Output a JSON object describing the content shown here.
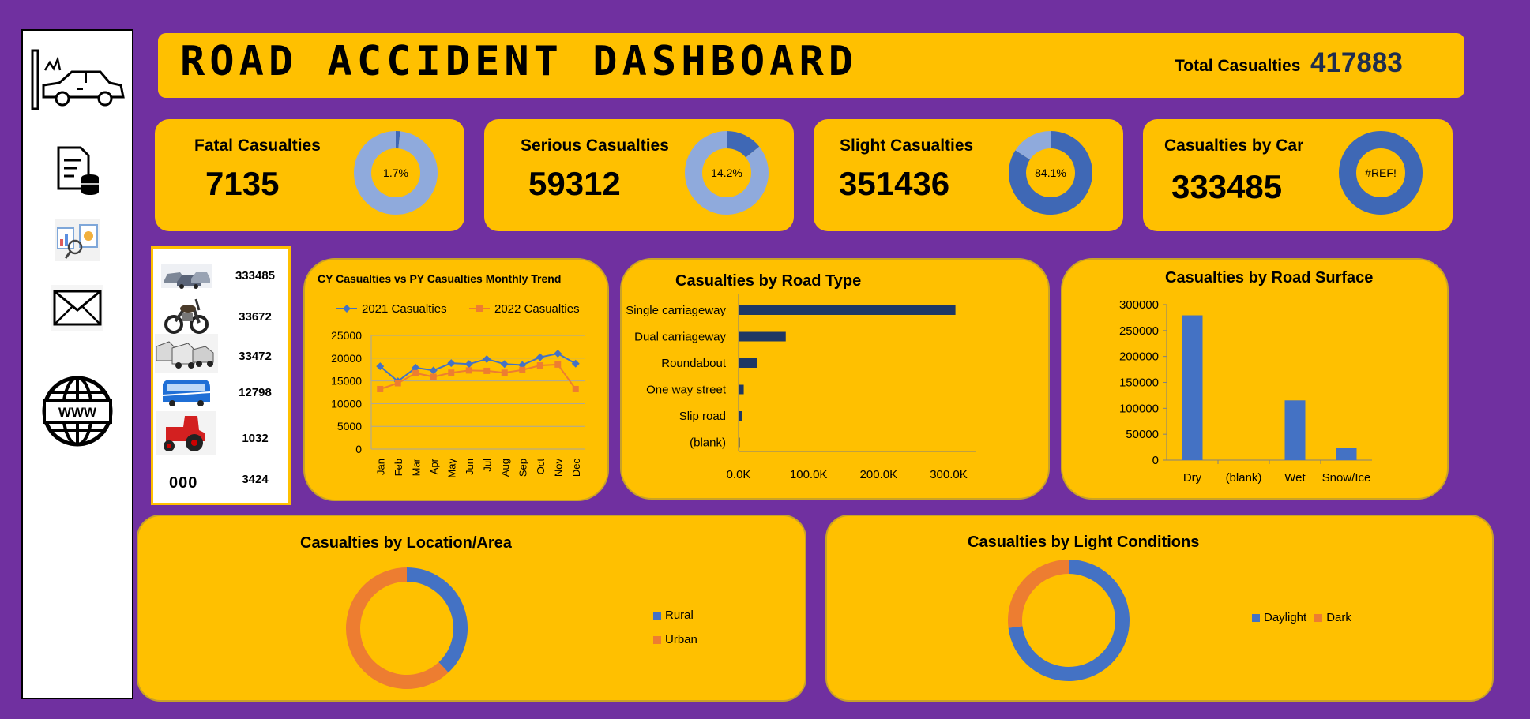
{
  "header": {
    "title": "ROAD ACCIDENT DASHBOARD",
    "total_label": "Total Casualties",
    "total_value": "417883"
  },
  "sidebar": {
    "icons": [
      "car-crash-icon",
      "database-report-icon",
      "analytics-icon",
      "mail-icon",
      "web-icon"
    ]
  },
  "kpis": [
    {
      "label": "Fatal Casualties",
      "value": "7135",
      "pct_label": "1.7%",
      "pct": 0.017
    },
    {
      "label": "Serious Casualties",
      "value": "59312",
      "pct_label": "14.2%",
      "pct": 0.142
    },
    {
      "label": "Slight Casualties",
      "value": "351436",
      "pct_label": "84.1%",
      "pct": 0.841
    },
    {
      "label": "Casualties by Car",
      "value": "333485",
      "pct_label": "#REF!",
      "pct": 1.0
    }
  ],
  "vehicles": [
    {
      "icon": "cars-icon",
      "value": "333485"
    },
    {
      "icon": "motorcycle-icon",
      "value": "33672"
    },
    {
      "icon": "vans-icon",
      "value": "33472"
    },
    {
      "icon": "bus-icon",
      "value": "12798"
    },
    {
      "icon": "tractor-icon",
      "value": "1032"
    },
    {
      "icon": "other-vehicles-icon",
      "value": "3424",
      "glyph": "000"
    }
  ],
  "colors": {
    "background": "#7030a0",
    "panel": "#ffc000",
    "blue": "#4472c4",
    "orange": "#ed7d31",
    "navy": "#1f3864",
    "donut_light": "#8faadc",
    "donut_dark": "#3f68b5"
  },
  "chart_data": [
    {
      "type": "line",
      "title": "CY Casualties vs PY Casualties  Monthly Trend",
      "categories": [
        "Jan",
        "Feb",
        "Mar",
        "Apr",
        "May",
        "Jun",
        "Jul",
        "Aug",
        "Sep",
        "Oct",
        "Nov",
        "Dec"
      ],
      "series": [
        {
          "name": "2021 Casualties",
          "values": [
            18200,
            14900,
            17900,
            17300,
            18900,
            18700,
            19800,
            18700,
            18500,
            20200,
            21000,
            18800
          ]
        },
        {
          "name": "2022 Casualties",
          "values": [
            13200,
            14500,
            16700,
            15900,
            16800,
            17300,
            17200,
            16800,
            17400,
            18400,
            18600,
            13200
          ]
        }
      ],
      "ylim": [
        0,
        25000
      ],
      "yticks": [
        "0",
        "5000",
        "10000",
        "15000",
        "20000",
        "25000"
      ],
      "legend": "top",
      "grid": true
    },
    {
      "type": "bar",
      "orientation": "horizontal",
      "title": "Casualties by Road Type",
      "categories": [
        "Single carriageway",
        "Dual carriageway",
        "Roundabout",
        "One way street",
        "Slip road",
        "(blank)"
      ],
      "values": [
        309700,
        67400,
        26800,
        7400,
        5600,
        1000
      ],
      "xlim": [
        0,
        300000
      ],
      "xticks": [
        "0.0K",
        "100.0K",
        "200.0K",
        "300.0K"
      ]
    },
    {
      "type": "bar",
      "title": "Casualties by Road Surface",
      "categories": [
        "Dry",
        "(blank)",
        "Wet",
        "Snow/Ice"
      ],
      "values": [
        279400,
        0,
        115300,
        23200
      ],
      "ylim": [
        0,
        300000
      ],
      "yticks": [
        "0",
        "50000",
        "100000",
        "150000",
        "200000",
        "250000",
        "300000"
      ]
    },
    {
      "type": "pie",
      "title": "Casualties by Location/Area",
      "labels": [
        "Rural",
        "Urban"
      ],
      "values": [
        0.38,
        0.62
      ],
      "legend": "right"
    },
    {
      "type": "pie",
      "title": "Casualties by Light Conditions",
      "labels": [
        "Daylight",
        "Dark"
      ],
      "values": [
        0.73,
        0.27
      ],
      "legend": "right"
    }
  ]
}
